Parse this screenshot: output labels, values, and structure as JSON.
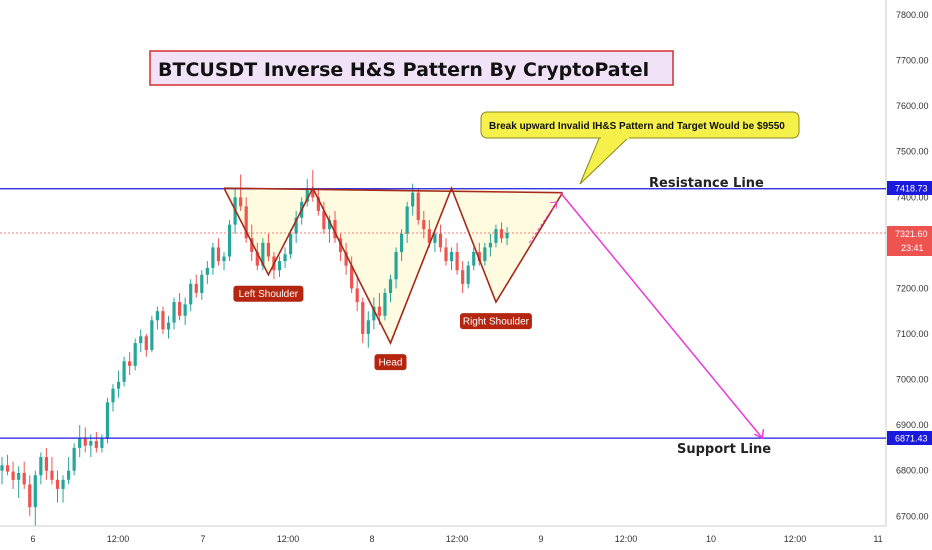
{
  "chart_data": {
    "type": "candlestick",
    "title": "BTCUSDT Inverse H&S Pattern By CryptoPatel",
    "y_ticks": [
      6700,
      6800,
      6900,
      7000,
      7100,
      7200,
      7300,
      7400,
      7500,
      7600,
      7700,
      7800
    ],
    "y_tick_labels": [
      "6700.00",
      "6800.00",
      "6900.00",
      "7000.00",
      "7100.00",
      "7200.00",
      "7300.00",
      "7400.00",
      "7500.00",
      "7600.00",
      "7700.00",
      "7800.00"
    ],
    "x_tick_labels": [
      "6",
      "12:00",
      "7",
      "12:00",
      "8",
      "12:00",
      "9",
      "12:00",
      "10",
      "12:00",
      "11"
    ],
    "resistance": {
      "label": "Resistance Line",
      "price": 7418.73,
      "price_label": "7418.73"
    },
    "support": {
      "label": "Support  Line",
      "price": 6871.43,
      "price_label": "6871.43"
    },
    "current_price": {
      "price": 7321.6,
      "price_label": "7321.60",
      "countdown": "23:41"
    },
    "pattern_labels": [
      "Left Shoulder",
      "Head",
      "Right Shoulder"
    ],
    "callout": "Break upward Invalid IH&S Pattern and Target Would be $9550",
    "target_price": 6871.43,
    "colors": {
      "up": "#26a69a",
      "down": "#ef5350",
      "pattern_line": "#a52a1a",
      "pattern_fill": "#fffbe0",
      "level_line": "#1a1adc",
      "projection": "#e83ad8",
      "label_bg": "#b52610",
      "callout_bg": "#f5f04a",
      "title_bg": "#f2e2f8",
      "title_border": "#d32f2f"
    },
    "candles": [
      {
        "o": 6800,
        "h": 6830,
        "l": 6770,
        "c": 6812
      },
      {
        "o": 6812,
        "h": 6835,
        "l": 6790,
        "c": 6798
      },
      {
        "o": 6798,
        "h": 6820,
        "l": 6760,
        "c": 6780
      },
      {
        "o": 6780,
        "h": 6810,
        "l": 6740,
        "c": 6795
      },
      {
        "o": 6795,
        "h": 6820,
        "l": 6760,
        "c": 6770
      },
      {
        "o": 6770,
        "h": 6790,
        "l": 6700,
        "c": 6720
      },
      {
        "o": 6720,
        "h": 6800,
        "l": 6680,
        "c": 6790
      },
      {
        "o": 6790,
        "h": 6840,
        "l": 6770,
        "c": 6830
      },
      {
        "o": 6830,
        "h": 6850,
        "l": 6780,
        "c": 6800
      },
      {
        "o": 6800,
        "h": 6830,
        "l": 6770,
        "c": 6780
      },
      {
        "o": 6780,
        "h": 6800,
        "l": 6730,
        "c": 6760
      },
      {
        "o": 6760,
        "h": 6790,
        "l": 6730,
        "c": 6780
      },
      {
        "o": 6780,
        "h": 6830,
        "l": 6770,
        "c": 6800
      },
      {
        "o": 6800,
        "h": 6860,
        "l": 6790,
        "c": 6850
      },
      {
        "o": 6850,
        "h": 6900,
        "l": 6830,
        "c": 6870
      },
      {
        "o": 6870,
        "h": 6895,
        "l": 6840,
        "c": 6855
      },
      {
        "o": 6855,
        "h": 6880,
        "l": 6830,
        "c": 6865
      },
      {
        "o": 6865,
        "h": 6885,
        "l": 6840,
        "c": 6850
      },
      {
        "o": 6850,
        "h": 6880,
        "l": 6840,
        "c": 6870
      },
      {
        "o": 6870,
        "h": 6960,
        "l": 6860,
        "c": 6950
      },
      {
        "o": 6950,
        "h": 6990,
        "l": 6930,
        "c": 6980
      },
      {
        "o": 6980,
        "h": 7020,
        "l": 6960,
        "c": 6995
      },
      {
        "o": 6995,
        "h": 7050,
        "l": 6985,
        "c": 7040
      },
      {
        "o": 7040,
        "h": 7060,
        "l": 7010,
        "c": 7030
      },
      {
        "o": 7030,
        "h": 7090,
        "l": 7020,
        "c": 7080
      },
      {
        "o": 7080,
        "h": 7110,
        "l": 7060,
        "c": 7095
      },
      {
        "o": 7095,
        "h": 7100,
        "l": 7050,
        "c": 7065
      },
      {
        "o": 7065,
        "h": 7140,
        "l": 7060,
        "c": 7130
      },
      {
        "o": 7130,
        "h": 7160,
        "l": 7110,
        "c": 7150
      },
      {
        "o": 7150,
        "h": 7160,
        "l": 7100,
        "c": 7110
      },
      {
        "o": 7110,
        "h": 7140,
        "l": 7090,
        "c": 7125
      },
      {
        "o": 7125,
        "h": 7180,
        "l": 7110,
        "c": 7170
      },
      {
        "o": 7170,
        "h": 7190,
        "l": 7130,
        "c": 7140
      },
      {
        "o": 7140,
        "h": 7180,
        "l": 7120,
        "c": 7165
      },
      {
        "o": 7165,
        "h": 7220,
        "l": 7150,
        "c": 7210
      },
      {
        "o": 7210,
        "h": 7230,
        "l": 7180,
        "c": 7190
      },
      {
        "o": 7190,
        "h": 7240,
        "l": 7175,
        "c": 7230
      },
      {
        "o": 7230,
        "h": 7260,
        "l": 7210,
        "c": 7245
      },
      {
        "o": 7245,
        "h": 7300,
        "l": 7230,
        "c": 7290
      },
      {
        "o": 7290,
        "h": 7310,
        "l": 7250,
        "c": 7260
      },
      {
        "o": 7260,
        "h": 7280,
        "l": 7240,
        "c": 7270
      },
      {
        "o": 7270,
        "h": 7350,
        "l": 7260,
        "c": 7340
      },
      {
        "o": 7340,
        "h": 7420,
        "l": 7320,
        "c": 7400
      },
      {
        "o": 7400,
        "h": 7450,
        "l": 7370,
        "c": 7380
      },
      {
        "o": 7380,
        "h": 7400,
        "l": 7300,
        "c": 7310
      },
      {
        "o": 7310,
        "h": 7340,
        "l": 7260,
        "c": 7280
      },
      {
        "o": 7280,
        "h": 7300,
        "l": 7240,
        "c": 7250
      },
      {
        "o": 7250,
        "h": 7310,
        "l": 7240,
        "c": 7300
      },
      {
        "o": 7300,
        "h": 7320,
        "l": 7260,
        "c": 7270
      },
      {
        "o": 7270,
        "h": 7280,
        "l": 7220,
        "c": 7240
      },
      {
        "o": 7240,
        "h": 7270,
        "l": 7225,
        "c": 7260
      },
      {
        "o": 7260,
        "h": 7290,
        "l": 7245,
        "c": 7275
      },
      {
        "o": 7275,
        "h": 7330,
        "l": 7265,
        "c": 7320
      },
      {
        "o": 7320,
        "h": 7370,
        "l": 7300,
        "c": 7355
      },
      {
        "o": 7355,
        "h": 7400,
        "l": 7340,
        "c": 7390
      },
      {
        "o": 7390,
        "h": 7440,
        "l": 7380,
        "c": 7420
      },
      {
        "o": 7420,
        "h": 7460,
        "l": 7390,
        "c": 7400
      },
      {
        "o": 7400,
        "h": 7420,
        "l": 7360,
        "c": 7370
      },
      {
        "o": 7370,
        "h": 7390,
        "l": 7320,
        "c": 7330
      },
      {
        "o": 7330,
        "h": 7360,
        "l": 7300,
        "c": 7350
      },
      {
        "o": 7350,
        "h": 7370,
        "l": 7300,
        "c": 7310
      },
      {
        "o": 7310,
        "h": 7320,
        "l": 7260,
        "c": 7280
      },
      {
        "o": 7280,
        "h": 7300,
        "l": 7230,
        "c": 7250
      },
      {
        "o": 7250,
        "h": 7270,
        "l": 7190,
        "c": 7200
      },
      {
        "o": 7200,
        "h": 7230,
        "l": 7150,
        "c": 7170
      },
      {
        "o": 7170,
        "h": 7180,
        "l": 7080,
        "c": 7100
      },
      {
        "o": 7100,
        "h": 7150,
        "l": 7070,
        "c": 7130
      },
      {
        "o": 7130,
        "h": 7180,
        "l": 7110,
        "c": 7160
      },
      {
        "o": 7160,
        "h": 7190,
        "l": 7120,
        "c": 7140
      },
      {
        "o": 7140,
        "h": 7200,
        "l": 7130,
        "c": 7190
      },
      {
        "o": 7190,
        "h": 7230,
        "l": 7170,
        "c": 7220
      },
      {
        "o": 7220,
        "h": 7290,
        "l": 7200,
        "c": 7280
      },
      {
        "o": 7280,
        "h": 7330,
        "l": 7260,
        "c": 7320
      },
      {
        "o": 7320,
        "h": 7390,
        "l": 7300,
        "c": 7380
      },
      {
        "o": 7380,
        "h": 7430,
        "l": 7360,
        "c": 7410
      },
      {
        "o": 7410,
        "h": 7420,
        "l": 7340,
        "c": 7350
      },
      {
        "o": 7350,
        "h": 7370,
        "l": 7310,
        "c": 7330
      },
      {
        "o": 7330,
        "h": 7350,
        "l": 7290,
        "c": 7300
      },
      {
        "o": 7300,
        "h": 7330,
        "l": 7280,
        "c": 7320
      },
      {
        "o": 7320,
        "h": 7340,
        "l": 7280,
        "c": 7290
      },
      {
        "o": 7290,
        "h": 7310,
        "l": 7250,
        "c": 7260
      },
      {
        "o": 7260,
        "h": 7290,
        "l": 7240,
        "c": 7280
      },
      {
        "o": 7280,
        "h": 7300,
        "l": 7230,
        "c": 7240
      },
      {
        "o": 7240,
        "h": 7260,
        "l": 7190,
        "c": 7210
      },
      {
        "o": 7210,
        "h": 7260,
        "l": 7200,
        "c": 7250
      },
      {
        "o": 7250,
        "h": 7290,
        "l": 7240,
        "c": 7280
      },
      {
        "o": 7280,
        "h": 7300,
        "l": 7250,
        "c": 7260
      },
      {
        "o": 7260,
        "h": 7300,
        "l": 7250,
        "c": 7290
      },
      {
        "o": 7290,
        "h": 7320,
        "l": 7270,
        "c": 7300
      },
      {
        "o": 7300,
        "h": 7340,
        "l": 7290,
        "c": 7330
      },
      {
        "o": 7330,
        "h": 7345,
        "l": 7300,
        "c": 7310
      },
      {
        "o": 7310,
        "h": 7335,
        "l": 7295,
        "c": 7322
      }
    ]
  }
}
